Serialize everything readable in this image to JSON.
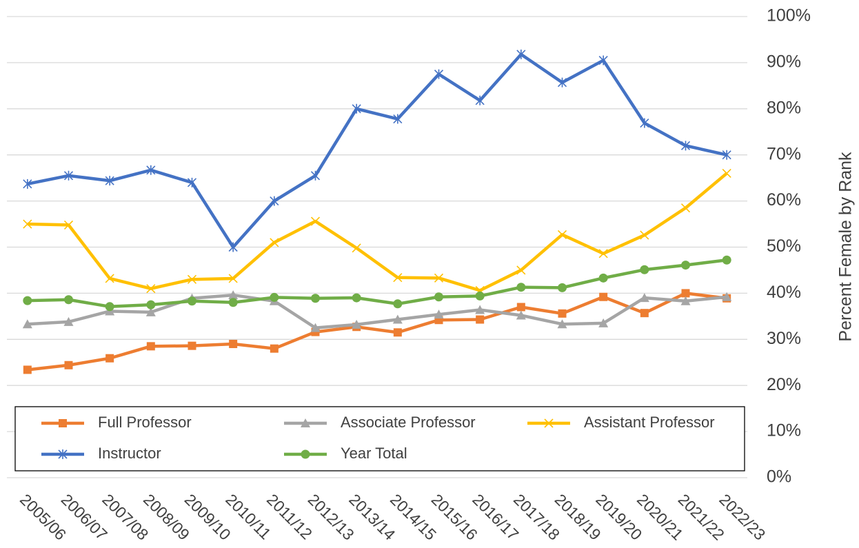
{
  "chart_data": {
    "type": "line",
    "y_axis_label": "Percent Female by Rank",
    "categories": [
      "2005/06",
      "2006/07",
      "2007/08",
      "2008/09",
      "2009/10",
      "2010/11",
      "2011/12",
      "2012/13",
      "2013/14",
      "2014/15",
      "2015/16",
      "2016/17",
      "2017/18",
      "2018/19",
      "2019/20",
      "2020/21",
      "2021/22",
      "2022/23"
    ],
    "series": [
      {
        "name": "Full Professor",
        "color": "#ed7d31",
        "marker": "square",
        "values": [
          23.4,
          24.4,
          25.9,
          28.5,
          28.6,
          29,
          28,
          31.6,
          32.7,
          31.5,
          34.2,
          34.3,
          37,
          35.6,
          39.2,
          35.7,
          40,
          38.9
        ]
      },
      {
        "name": "Associate Professor",
        "color": "#a5a5a5",
        "marker": "triangle",
        "values": [
          33.3,
          33.8,
          36.1,
          35.9,
          38.9,
          39.6,
          38.3,
          32.5,
          33.2,
          34.3,
          35.4,
          36.4,
          35.2,
          33.3,
          33.5,
          39,
          38.3,
          39.2
        ]
      },
      {
        "name": "Assistant Professor",
        "color": "#ffc000",
        "marker": "x",
        "values": [
          55,
          54.8,
          43.2,
          41,
          43,
          43.2,
          51,
          55.6,
          49.8,
          43.4,
          43.3,
          40.6,
          45,
          52.7,
          48.6,
          52.6,
          58.5,
          66
        ]
      },
      {
        "name": "Instructor",
        "color": "#4472c4",
        "marker": "asterisk",
        "values": [
          63.7,
          65.5,
          64.4,
          66.7,
          64,
          50,
          60,
          65.5,
          80,
          77.8,
          87.5,
          81.8,
          91.8,
          85.7,
          90.5,
          76.9,
          72,
          70
        ]
      },
      {
        "name": "Year Total",
        "color": "#70ad47",
        "marker": "circle",
        "values": [
          38.4,
          38.6,
          37.1,
          37.5,
          38.3,
          38,
          39.1,
          38.9,
          39,
          37.7,
          39.2,
          39.4,
          41.3,
          41.2,
          43.3,
          45.1,
          46.1,
          47.2
        ]
      }
    ],
    "ylim": [
      0,
      100
    ],
    "yticks": [
      {
        "value": 0,
        "label": "0%"
      },
      {
        "value": 10,
        "label": "10%"
      },
      {
        "value": 20,
        "label": "20%"
      },
      {
        "value": 30,
        "label": "30%"
      },
      {
        "value": 40,
        "label": "40%"
      },
      {
        "value": 50,
        "label": "50%"
      },
      {
        "value": 60,
        "label": "60%"
      },
      {
        "value": 70,
        "label": "70%"
      },
      {
        "value": 80,
        "label": "80%"
      },
      {
        "value": 90,
        "label": "90%"
      },
      {
        "value": 100,
        "label": "100%"
      }
    ],
    "grid": true,
    "legend": "bottom"
  }
}
